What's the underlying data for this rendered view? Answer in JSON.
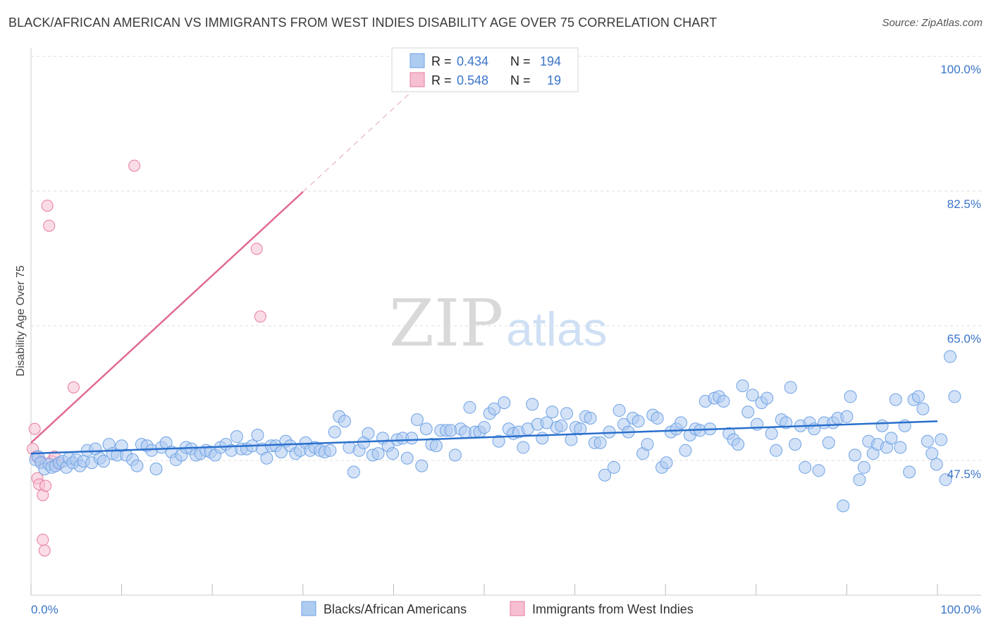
{
  "title": "BLACK/AFRICAN AMERICAN VS IMMIGRANTS FROM WEST INDIES DISABILITY AGE OVER 75 CORRELATION CHART",
  "source": "Source: ZipAtlas.com",
  "watermark": {
    "zip": "ZIP",
    "atlas": "atlas"
  },
  "colors": {
    "blue": "#6fa3e6",
    "blue_fill": "#aecbf0",
    "blue_line": "#2a6fcc",
    "pink": "#e87aa0",
    "pink_fill": "#f6bfd2",
    "pink_line": "#e06a93",
    "tick_text": "#3a74c9",
    "grid": "#dddddd"
  },
  "legend": {
    "rows": [
      {
        "r_label": "R =",
        "r_value": "0.434",
        "n_label": "N =",
        "n_value": "194"
      },
      {
        "r_label": "R =",
        "r_value": "0.548",
        "n_label": "N =",
        "n_value": "19"
      }
    ]
  },
  "bottom_legend": [
    "Blacks/African Americans",
    "Immigrants from West Indies"
  ],
  "chart_data": {
    "type": "scatter",
    "title": "BLACK/AFRICAN AMERICAN VS IMMIGRANTS FROM WEST INDIES DISABILITY AGE OVER 75 CORRELATION CHART",
    "xlabel": "",
    "ylabel": "Disability Age Over 75",
    "xlim": [
      0,
      100
    ],
    "ylim": [
      30,
      102
    ],
    "x_tick_labels": [
      "0.0%",
      "100.0%"
    ],
    "y_tick_labels": [
      "100.0%",
      "82.5%",
      "65.0%",
      "47.5%"
    ],
    "y_ticks": [
      100,
      82.5,
      65,
      47.5
    ],
    "grid": true,
    "legend_position": "top-center",
    "series": [
      {
        "name": "Blacks/African Americans",
        "r": 0.434,
        "n": 194,
        "trend": {
          "x": [
            0,
            100
          ],
          "y": [
            48.4,
            52.6
          ]
        },
        "points": [
          [
            0.5,
            47.6
          ],
          [
            0.8,
            48
          ],
          [
            1.1,
            47.2
          ],
          [
            1.5,
            46.4
          ],
          [
            2,
            47
          ],
          [
            2.3,
            46.6
          ],
          [
            2.7,
            46.8
          ],
          [
            3.1,
            47.2
          ],
          [
            3.5,
            47.4
          ],
          [
            3.9,
            46.6
          ],
          [
            4.2,
            47.8
          ],
          [
            4.6,
            47.2
          ],
          [
            5,
            47.6
          ],
          [
            5.4,
            46.8
          ],
          [
            5.8,
            47.4
          ],
          [
            6.2,
            48.8
          ],
          [
            6.7,
            47.2
          ],
          [
            7.1,
            49
          ],
          [
            7.6,
            47.8
          ],
          [
            8,
            47.4
          ],
          [
            8.6,
            49.6
          ],
          [
            9,
            48.4
          ],
          [
            9.5,
            48.2
          ],
          [
            10,
            49.4
          ],
          [
            10.5,
            48.2
          ],
          [
            11.2,
            47.6
          ],
          [
            11.7,
            46.8
          ],
          [
            12.2,
            49.6
          ],
          [
            12.8,
            49.4
          ],
          [
            13.3,
            48.8
          ],
          [
            13.8,
            46.4
          ],
          [
            14.4,
            49.2
          ],
          [
            14.9,
            49.8
          ],
          [
            15.5,
            48.6
          ],
          [
            16,
            47.6
          ],
          [
            16.6,
            48.2
          ],
          [
            17.1,
            49.2
          ],
          [
            17.7,
            49
          ],
          [
            18.2,
            48.2
          ],
          [
            18.7,
            48.4
          ],
          [
            19.3,
            48.8
          ],
          [
            19.8,
            48.6
          ],
          [
            20.3,
            48.2
          ],
          [
            20.9,
            49.2
          ],
          [
            21.5,
            49.6
          ],
          [
            22.1,
            48.8
          ],
          [
            22.7,
            50.6
          ],
          [
            23.2,
            49
          ],
          [
            23.8,
            49
          ],
          [
            24.4,
            49.4
          ],
          [
            25,
            50.8
          ],
          [
            25.5,
            49
          ],
          [
            26,
            47.8
          ],
          [
            26.5,
            49.4
          ],
          [
            27,
            49.4
          ],
          [
            27.6,
            48.6
          ],
          [
            28.1,
            50
          ],
          [
            28.6,
            49.4
          ],
          [
            29.2,
            48.4
          ],
          [
            29.7,
            48.8
          ],
          [
            30.3,
            49.8
          ],
          [
            30.8,
            48.8
          ],
          [
            31.3,
            49.2
          ],
          [
            31.9,
            48.8
          ],
          [
            32.4,
            48.6
          ],
          [
            33,
            48.8
          ],
          [
            33.5,
            51.2
          ],
          [
            34,
            53.2
          ],
          [
            34.6,
            52.6
          ],
          [
            35.1,
            49.2
          ],
          [
            35.6,
            46
          ],
          [
            36.2,
            48.8
          ],
          [
            36.7,
            49.8
          ],
          [
            37.2,
            51
          ],
          [
            37.7,
            48.2
          ],
          [
            38.3,
            48.4
          ],
          [
            38.8,
            50.4
          ],
          [
            39.4,
            49.4
          ],
          [
            39.9,
            48.4
          ],
          [
            40.4,
            50.2
          ],
          [
            41,
            50.4
          ],
          [
            41.5,
            47.8
          ],
          [
            42,
            50.4
          ],
          [
            42.6,
            52.8
          ],
          [
            43.1,
            46.8
          ],
          [
            43.6,
            51.6
          ],
          [
            44.2,
            49.6
          ],
          [
            44.7,
            49.4
          ],
          [
            45.2,
            51.4
          ],
          [
            45.8,
            51.4
          ],
          [
            46.3,
            51.4
          ],
          [
            46.8,
            48.2
          ],
          [
            47.4,
            51.6
          ],
          [
            47.9,
            51.2
          ],
          [
            48.4,
            54.4
          ],
          [
            49,
            51.2
          ],
          [
            49.5,
            51.2
          ],
          [
            50,
            51.8
          ],
          [
            50.6,
            53.6
          ],
          [
            51.1,
            54.2
          ],
          [
            51.6,
            50
          ],
          [
            52.2,
            55
          ],
          [
            52.7,
            51.6
          ],
          [
            53.2,
            51
          ],
          [
            53.8,
            51.2
          ],
          [
            54.3,
            49.2
          ],
          [
            54.8,
            51.6
          ],
          [
            55.3,
            54.8
          ],
          [
            55.9,
            52.2
          ],
          [
            56.4,
            50.4
          ],
          [
            56.9,
            52.4
          ],
          [
            57.5,
            53.8
          ],
          [
            58,
            51.8
          ],
          [
            58.5,
            52
          ],
          [
            59.1,
            53.6
          ],
          [
            59.6,
            50.2
          ],
          [
            60.1,
            51.8
          ],
          [
            60.6,
            51.6
          ],
          [
            61.2,
            53.2
          ],
          [
            61.7,
            53
          ],
          [
            62.2,
            49.8
          ],
          [
            62.8,
            49.8
          ],
          [
            63.3,
            45.6
          ],
          [
            63.8,
            51.2
          ],
          [
            64.3,
            46.6
          ],
          [
            64.9,
            54
          ],
          [
            65.4,
            52.2
          ],
          [
            65.9,
            51.2
          ],
          [
            66.4,
            53
          ],
          [
            67,
            52.6
          ],
          [
            67.5,
            48.4
          ],
          [
            68,
            49.6
          ],
          [
            68.6,
            53.4
          ],
          [
            69.1,
            53
          ],
          [
            69.6,
            46.6
          ],
          [
            70.1,
            47.2
          ],
          [
            70.6,
            51.2
          ],
          [
            71.2,
            51.6
          ],
          [
            71.7,
            52.4
          ],
          [
            72.2,
            48.8
          ],
          [
            72.7,
            50.8
          ],
          [
            73.3,
            51.6
          ],
          [
            73.8,
            51.4
          ],
          [
            74.4,
            55.2
          ],
          [
            74.9,
            51.6
          ],
          [
            75.4,
            55.6
          ],
          [
            75.9,
            55.8
          ],
          [
            76.4,
            55.2
          ],
          [
            77,
            51
          ],
          [
            77.5,
            50.2
          ],
          [
            78,
            49.6
          ],
          [
            78.5,
            57.2
          ],
          [
            79.1,
            53.8
          ],
          [
            79.6,
            56
          ],
          [
            80.1,
            52.2
          ],
          [
            80.6,
            55
          ],
          [
            81.2,
            55.6
          ],
          [
            81.7,
            51
          ],
          [
            82.2,
            48.8
          ],
          [
            82.8,
            52.8
          ],
          [
            83.3,
            52.4
          ],
          [
            83.8,
            57
          ],
          [
            84.3,
            49.6
          ],
          [
            84.9,
            52
          ],
          [
            85.4,
            46.6
          ],
          [
            85.9,
            52.4
          ],
          [
            86.4,
            51.6
          ],
          [
            86.9,
            46.2
          ],
          [
            87.5,
            52.4
          ],
          [
            88,
            49.8
          ],
          [
            88.5,
            52.4
          ],
          [
            89,
            53
          ],
          [
            89.6,
            41.6
          ],
          [
            90,
            53.2
          ],
          [
            90.4,
            55.8
          ],
          [
            90.9,
            48.2
          ],
          [
            91.4,
            45
          ],
          [
            91.9,
            46.6
          ],
          [
            92.4,
            50
          ],
          [
            92.9,
            48.4
          ],
          [
            93.4,
            49.6
          ],
          [
            93.9,
            52
          ],
          [
            94.4,
            49.2
          ],
          [
            94.9,
            50.4
          ],
          [
            95.4,
            55.4
          ],
          [
            95.9,
            49.2
          ],
          [
            96.4,
            52
          ],
          [
            96.9,
            46
          ],
          [
            97.4,
            55.4
          ],
          [
            97.9,
            55.8
          ],
          [
            98.4,
            54.2
          ],
          [
            98.9,
            50
          ],
          [
            99.4,
            48.4
          ],
          [
            99.9,
            47
          ],
          [
            100.4,
            50.2
          ],
          [
            100.9,
            45
          ],
          [
            101.4,
            61
          ],
          [
            101.9,
            55.8
          ]
        ]
      },
      {
        "name": "Immigrants from West Indies",
        "r": 0.548,
        "n": 19,
        "trend": {
          "x": [
            0,
            30
          ],
          "y": [
            49.8,
            82.4
          ]
        },
        "trend_extension": {
          "x": [
            30,
            45
          ],
          "y": [
            82.4,
            98.7
          ]
        },
        "points": [
          [
            0.2,
            49
          ],
          [
            0.4,
            51.6
          ],
          [
            0.6,
            48
          ],
          [
            0.7,
            45.2
          ],
          [
            0.9,
            44.4
          ],
          [
            1.1,
            47.4
          ],
          [
            1.3,
            43
          ],
          [
            1.5,
            35.8
          ],
          [
            1.6,
            44.2
          ],
          [
            1.8,
            80.6
          ],
          [
            2,
            78
          ],
          [
            2.3,
            47.4
          ],
          [
            2.6,
            48
          ],
          [
            3,
            47
          ],
          [
            4.7,
            57
          ],
          [
            11.4,
            85.8
          ],
          [
            24.9,
            75
          ],
          [
            25.3,
            66.2
          ],
          [
            1.3,
            37.2
          ]
        ]
      }
    ]
  }
}
